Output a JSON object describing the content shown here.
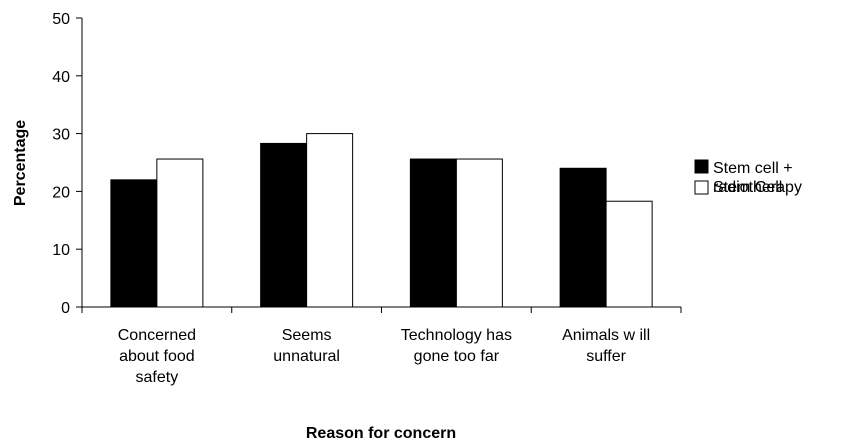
{
  "chart_data": {
    "type": "bar",
    "categories": [
      [
        "Concerned",
        "about food",
        "safety"
      ],
      [
        "Seems",
        "unnatural"
      ],
      [
        "Technology has",
        "gone too far"
      ],
      [
        "Animals w ill",
        "suffer"
      ]
    ],
    "series": [
      {
        "name": [
          "Stem cell +",
          "radiotherapy"
        ],
        "values": [
          22,
          28.3,
          25.6,
          24
        ],
        "color": "#000000"
      },
      {
        "name": [
          "Stem Cell"
        ],
        "values": [
          25.6,
          30,
          25.6,
          18.3
        ],
        "color": "#ffffff"
      }
    ],
    "xlabel": "Reason for concern",
    "ylabel": "Percentage",
    "ylim": [
      0,
      50
    ],
    "yticks": [
      0,
      10,
      20,
      30,
      40,
      50
    ],
    "legend_position": "right",
    "grid": false
  }
}
